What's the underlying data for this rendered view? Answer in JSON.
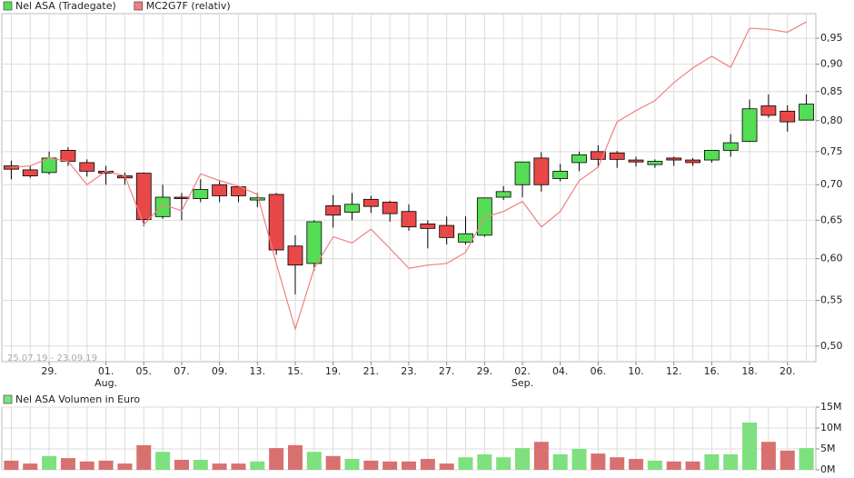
{
  "chart_data": [
    {
      "type": "candlestick",
      "date_range": "25.07.19 - 23.09.19",
      "categories": [
        null,
        null,
        "29.",
        null,
        null,
        "01.",
        null,
        "05.",
        null,
        "07.",
        null,
        "09.",
        null,
        "13.",
        null,
        "15.",
        null,
        "19.",
        null,
        "21.",
        null,
        "23.",
        null,
        "27.",
        null,
        "29.",
        null,
        "02.",
        null,
        "04.",
        null,
        "06.",
        null,
        "10.",
        null,
        "12.",
        null,
        "16.",
        null,
        "18.",
        null,
        "20.",
        null
      ],
      "category_sublabels": [
        null,
        null,
        null,
        null,
        null,
        "Aug.",
        null,
        null,
        null,
        null,
        null,
        null,
        null,
        null,
        null,
        null,
        null,
        null,
        null,
        null,
        null,
        null,
        null,
        null,
        null,
        null,
        null,
        "Sep.",
        null,
        null,
        null,
        null,
        null,
        null,
        null,
        null,
        null,
        null,
        null,
        null,
        null,
        null,
        null
      ],
      "ylim": [
        0.484,
        1.0
      ],
      "log_scale": true,
      "grid": true,
      "yticks": [
        {
          "value": 0.5,
          "label": "0,50"
        },
        {
          "value": 0.55,
          "label": "0,55"
        },
        {
          "value": 0.6,
          "label": "0,60"
        },
        {
          "value": 0.65,
          "label": "0,65"
        },
        {
          "value": 0.7,
          "label": "0,70"
        },
        {
          "value": 0.75,
          "label": "0,75"
        },
        {
          "value": 0.8,
          "label": "0,80"
        },
        {
          "value": 0.85,
          "label": "0,85"
        },
        {
          "value": 0.9,
          "label": "0,90"
        },
        {
          "value": 0.95,
          "label": "0,95"
        }
      ],
      "series": [
        {
          "name": "Nel ASA (Tradegate)",
          "type": "candlestick",
          "color": "#55dd55",
          "up_color": "#55dd55",
          "down_color": "#e84848",
          "open": [
            0.728,
            0.722,
            0.718,
            0.752,
            0.733,
            0.72,
            0.713,
            0.717,
            0.655,
            0.682,
            0.68,
            0.7,
            0.697,
            0.678,
            0.686,
            0.616,
            0.594,
            0.67,
            0.661,
            0.679,
            0.675,
            0.662,
            0.645,
            0.643,
            0.621,
            0.63,
            0.682,
            0.7,
            0.74,
            0.709,
            0.733,
            0.75,
            0.748,
            0.737,
            0.73,
            0.74,
            0.737,
            0.737,
            0.752,
            0.766,
            0.825,
            0.816,
            0.801
          ],
          "high": [
            0.736,
            0.728,
            0.75,
            0.757,
            0.738,
            0.728,
            0.718,
            0.718,
            0.7,
            0.688,
            0.708,
            0.705,
            0.698,
            0.688,
            0.688,
            0.63,
            0.65,
            0.685,
            0.688,
            0.684,
            0.677,
            0.672,
            0.65,
            0.655,
            0.655,
            0.681,
            0.698,
            0.734,
            0.749,
            0.731,
            0.75,
            0.76,
            0.751,
            0.742,
            0.738,
            0.742,
            0.74,
            0.752,
            0.778,
            0.836,
            0.845,
            0.826,
            0.845
          ],
          "low": [
            0.708,
            0.71,
            0.715,
            0.728,
            0.712,
            0.7,
            0.7,
            0.642,
            0.652,
            0.65,
            0.675,
            0.675,
            0.675,
            0.668,
            0.605,
            0.557,
            0.585,
            0.64,
            0.65,
            0.66,
            0.648,
            0.636,
            0.613,
            0.618,
            0.618,
            0.628,
            0.678,
            0.682,
            0.69,
            0.705,
            0.72,
            0.725,
            0.725,
            0.727,
            0.725,
            0.728,
            0.728,
            0.733,
            0.742,
            0.765,
            0.805,
            0.782,
            0.801
          ],
          "close": [
            0.723,
            0.713,
            0.74,
            0.735,
            0.72,
            0.717,
            0.71,
            0.651,
            0.682,
            0.68,
            0.693,
            0.684,
            0.684,
            0.681,
            0.611,
            0.592,
            0.648,
            0.657,
            0.672,
            0.669,
            0.659,
            0.641,
            0.639,
            0.627,
            0.632,
            0.681,
            0.69,
            0.734,
            0.7,
            0.72,
            0.745,
            0.738,
            0.738,
            0.734,
            0.735,
            0.737,
            0.733,
            0.752,
            0.764,
            0.82,
            0.809,
            0.798,
            0.828
          ]
        },
        {
          "name": "MC2G7F (relativ)",
          "type": "line",
          "color": "#f08080",
          "values": [
            0.726,
            0.728,
            0.74,
            0.735,
            0.7,
            0.72,
            0.713,
            0.644,
            0.672,
            0.663,
            0.716,
            0.706,
            0.698,
            0.686,
            0.594,
            0.518,
            0.588,
            0.628,
            0.62,
            0.638,
            0.613,
            0.588,
            0.592,
            0.594,
            0.608,
            0.654,
            0.662,
            0.676,
            0.641,
            0.662,
            0.706,
            0.726,
            0.798,
            0.817,
            0.834,
            0.866,
            0.893,
            0.915,
            0.894,
            0.97,
            0.968,
            0.962,
            0.983
          ]
        }
      ]
    },
    {
      "type": "bar",
      "ylim": [
        0,
        15000000
      ],
      "grid": true,
      "yticks": [
        {
          "value": 0,
          "label": "0M"
        },
        {
          "value": 5000000,
          "label": "5M"
        },
        {
          "value": 10000000,
          "label": "10M"
        },
        {
          "value": 15000000,
          "label": "15M"
        }
      ],
      "series": [
        {
          "name": "Nel ASA Volumen in Euro",
          "color": "#7ee07e",
          "down_color": "#d97070",
          "values": [
            2200000,
            1500000,
            3300000,
            2800000,
            2000000,
            2200000,
            1500000,
            5900000,
            4300000,
            2400000,
            2400000,
            1500000,
            1500000,
            2000000,
            5200000,
            5900000,
            4300000,
            3300000,
            2600000,
            2200000,
            2000000,
            2000000,
            2600000,
            1500000,
            3000000,
            3700000,
            3000000,
            5200000,
            6700000,
            3700000,
            5000000,
            3900000,
            3000000,
            2600000,
            2200000,
            2000000,
            2000000,
            3700000,
            3700000,
            11300000,
            6700000,
            4600000,
            5200000
          ]
        }
      ]
    }
  ]
}
